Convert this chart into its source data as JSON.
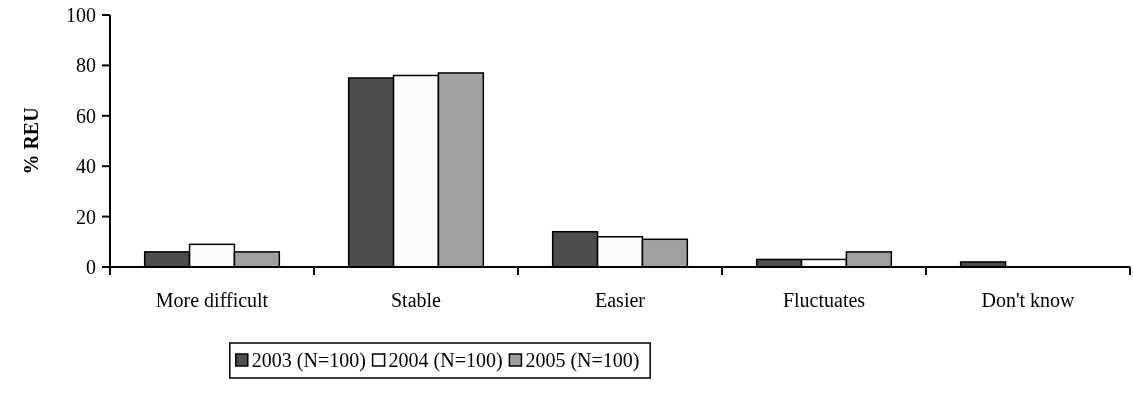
{
  "chart_data": {
    "type": "bar",
    "ylabel": "% REU",
    "categories": [
      "More difficult",
      "Stable",
      "Easier",
      "Fluctuates",
      "Don't know"
    ],
    "series": [
      {
        "name": "2003 (N=100)",
        "color": "#4d4d4d",
        "values": [
          6,
          75,
          14,
          3,
          2
        ]
      },
      {
        "name": "2004 (N=100)",
        "color": "#fbfbfb",
        "values": [
          9,
          76,
          12,
          3,
          0
        ]
      },
      {
        "name": "2005 (N=100)",
        "color": "#a0a0a0",
        "values": [
          6,
          77,
          11,
          6,
          0
        ]
      }
    ],
    "ylim": [
      0,
      100
    ],
    "yticks": [
      0,
      20,
      40,
      60,
      80,
      100
    ],
    "grid": false,
    "legend": "bottom"
  }
}
